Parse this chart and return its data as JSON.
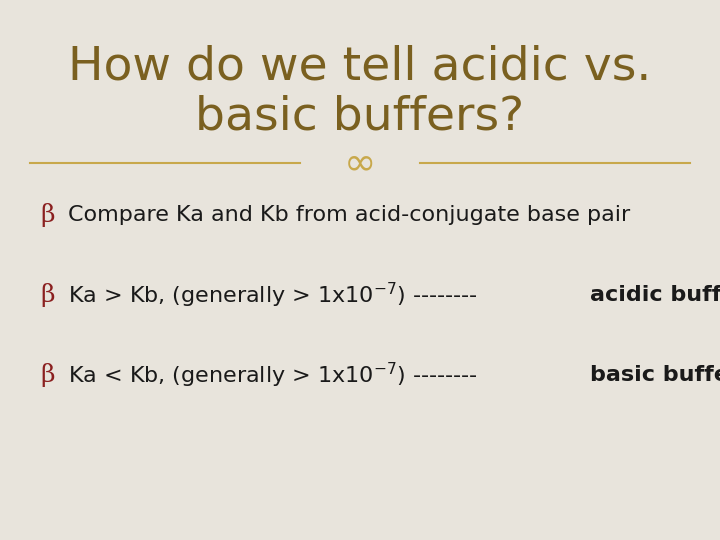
{
  "background_color": "#e8e4dc",
  "title_line1": "How do we tell acidic vs.",
  "title_line2": "basic buffers?",
  "title_color": "#7a6020",
  "title_fontsize": 34,
  "divider_color": "#c8a84b",
  "bullet_color": "#8b2020",
  "body_color": "#1a1a1a",
  "body_fontsize": 16,
  "bold_color": "#1a1a1a",
  "line1_text": "Compare Ka and Kb from acid-conjugate base pair",
  "line2_normal": "Ka > Kb, (generally > 1x10",
  "line2_super": "-7",
  "line2_dashes": ") -------- ",
  "line2_bold": "acidic buffer",
  "line3_normal": "Ka < Kb, (generally > 1x10",
  "line3_super": "-7",
  "line3_dashes": ") -------- ",
  "line3_bold": "basic buffer",
  "ornament_color": "#c8a84b",
  "ornament_fontsize": 28,
  "figsize": [
    7.2,
    5.4
  ],
  "dpi": 100
}
